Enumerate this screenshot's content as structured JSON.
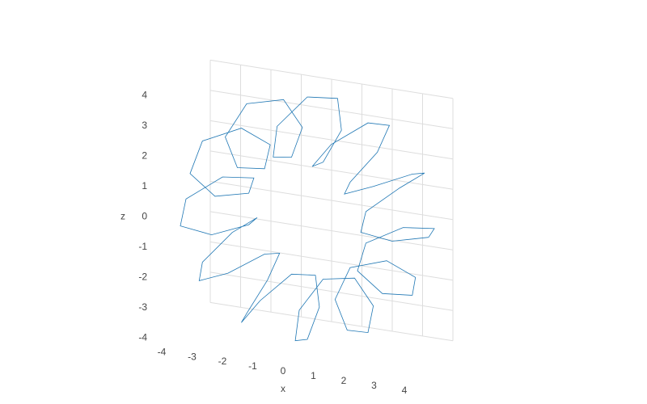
{
  "chart_data": {
    "type": "line3d",
    "color": "#1f77b4",
    "x_title": "x",
    "z_title": "z",
    "xlim": [
      -4,
      4
    ],
    "ylim": [
      -1,
      1
    ],
    "zlim": [
      -4,
      4
    ],
    "xticks": [
      -4,
      -3,
      -2,
      -1,
      0,
      1,
      2,
      3,
      4
    ],
    "zticks": [
      -4,
      -3,
      -2,
      -1,
      0,
      1,
      2,
      3,
      4
    ],
    "x": [
      4,
      3.49,
      2.46,
      1.93,
      2.35,
      3.17,
      3.46,
      2.87,
      1.92,
      1.41,
      1.61,
      2.01,
      2.0,
      1.48,
      0.86,
      0.52,
      0.43,
      0.3,
      0,
      -0.3,
      -0.43,
      -0.52,
      -0.86,
      -1.48,
      -2.0,
      -2.01,
      -1.61,
      -1.41,
      -1.92,
      -2.87,
      -3.46,
      -3.17,
      -2.35,
      -1.93,
      -2.46,
      -3.49,
      -4,
      -3.49,
      -2.46,
      -1.93,
      -2.35,
      -3.17,
      -3.46,
      -2.87,
      -1.92,
      -1.41,
      -1.61,
      -2.01,
      -2.0,
      -1.48,
      -0.86,
      -0.52,
      -0.43,
      -0.3,
      0,
      0.3,
      0.43,
      0.52,
      0.86,
      1.48,
      2.0,
      2.01,
      1.61,
      1.41,
      1.92,
      2.87,
      3.46,
      3.17,
      2.35,
      1.93,
      2.46,
      3.49,
      4
    ],
    "y": [
      0,
      0.87,
      0.87,
      0,
      -0.87,
      -0.87,
      0,
      0.87,
      0.87,
      0,
      -0.87,
      -0.87,
      0,
      0.87,
      0.87,
      0,
      -0.87,
      -0.87,
      0,
      0.87,
      0.87,
      0,
      -0.87,
      -0.87,
      0,
      0.87,
      0.87,
      0,
      -0.87,
      -0.87,
      0,
      0.87,
      0.87,
      0,
      -0.87,
      -0.87,
      0,
      0.87,
      0.87,
      0,
      -0.87,
      -0.87,
      0,
      0.87,
      0.87,
      0,
      -0.87,
      -0.87,
      0,
      0.87,
      0.87,
      0,
      -0.87,
      -0.87,
      0,
      0.87,
      0.87,
      0,
      -0.87,
      -0.87,
      0,
      0.87,
      0.87,
      0,
      -0.87,
      -0.87,
      0,
      0.87,
      0.87,
      0,
      -0.87,
      -0.87,
      0
    ],
    "z": [
      0,
      0.3,
      0.43,
      0.52,
      0.86,
      1.48,
      2.0,
      2.01,
      1.61,
      1.41,
      1.92,
      2.87,
      3.46,
      3.17,
      2.35,
      1.93,
      2.46,
      3.49,
      4,
      3.49,
      2.46,
      1.93,
      2.35,
      3.17,
      3.46,
      2.87,
      1.92,
      1.41,
      1.61,
      2.01,
      2.0,
      1.48,
      0.86,
      0.52,
      0.43,
      0.3,
      0,
      -0.3,
      -0.43,
      -0.52,
      -0.86,
      -1.48,
      -2.0,
      -2.01,
      -1.61,
      -1.41,
      -1.92,
      -2.87,
      -3.46,
      -3.17,
      -2.35,
      -1.93,
      -2.46,
      -3.49,
      -4,
      -3.49,
      -2.46,
      -1.93,
      -2.35,
      -3.17,
      -3.46,
      -2.87,
      -1.92,
      -1.41,
      -1.61,
      -2.01,
      -2.0,
      -1.48,
      -0.86,
      -0.52,
      -0.43,
      -0.3,
      0
    ]
  }
}
